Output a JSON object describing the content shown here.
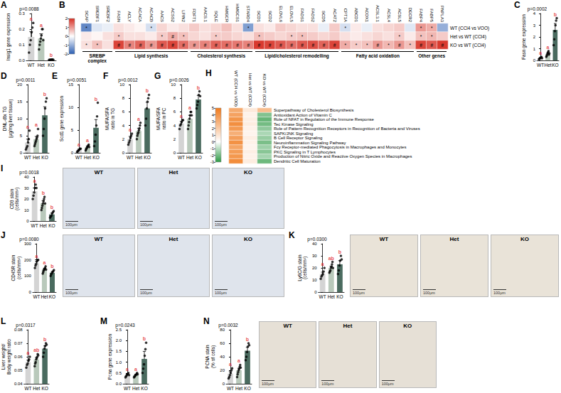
{
  "chart_data": [
    {
      "panel": "A",
      "type": "bar",
      "ylabel": "Insig1 gene expression",
      "annotation": "p=0.0088",
      "categories": [
        "WT",
        "Het",
        "KO"
      ],
      "colors": [
        "#d4d4d4",
        "#b9c9bb",
        "#4a6b5f"
      ],
      "values": [
        0.15,
        0.14,
        0.005
      ],
      "errors": [
        0.035,
        0.03,
        0.002
      ],
      "points": [
        [
          0.05,
          0.1,
          0.13,
          0.18,
          0.21,
          0.24
        ],
        [
          0.07,
          0.1,
          0.12,
          0.14,
          0.16,
          0.2,
          0.2,
          0.13
        ],
        [
          0.003,
          0.004,
          0.005,
          0.006,
          0.006,
          0.004
        ]
      ],
      "letters": [
        "a",
        "a",
        "b"
      ],
      "ylim": [
        0,
        0.3
      ],
      "yticks": [
        {
          "value": 0,
          "label": "0.0"
        },
        0.1,
        0.2,
        0.3
      ]
    },
    {
      "panel": "B",
      "type": "heatmap",
      "groups": [
        {
          "name": "SREBP complex",
          "genes": [
            "SCAP",
            "SREBF1",
            "SREBF2"
          ]
        },
        {
          "name": "Lipid synthesis",
          "genes": [
            "FASN",
            "ACLY",
            "ACACA",
            "ACACB",
            "AACS",
            "ACSS2",
            "LPIN2"
          ]
        },
        {
          "name": "Cholesterol synthesis",
          "genes": [
            "FDFT1",
            "AACS.1",
            "SQLE",
            "HMGCR",
            "HMGCS1",
            "STARD4"
          ]
        },
        {
          "name": "Lipid/cholesterol remodelling",
          "genes": [
            "SCD1",
            "SCD2",
            "ELOVL6",
            "ELOVL5",
            "FADS1",
            "FADS2",
            "SCD5",
            "ACAT2"
          ]
        },
        {
          "name": "Fatty acid oxidation",
          "genes": [
            "CPT1A",
            "ABCD1",
            "ACOX1",
            "ACSL3.1",
            "ACSL4",
            "ACSL5",
            "DECR2"
          ]
        },
        {
          "name": "Other genes",
          "genes": [
            "FABP4",
            "FABP5",
            "PNPLA3"
          ]
        }
      ],
      "rows": [
        "WT (CCl4 vs VOO)",
        "Het vs WT (CCl4)",
        "KO vs WT (CCl4)"
      ],
      "values": [
        [
          -1.5,
          -0.3,
          -0.2,
          0.3,
          0.2,
          0.1,
          -0.4,
          0.4,
          0.2,
          0.3,
          0.5,
          0.3,
          0.4,
          0.6,
          0.3,
          -1.2,
          0.3,
          0.2,
          0.5,
          0.4,
          0.3,
          0.3,
          -0.2,
          0.5,
          -0.4,
          0.2,
          -0.2,
          0.3,
          0.4,
          0.5,
          -0.3,
          1.0,
          0.8,
          -1.0
        ],
        [
          0.2,
          0.1,
          0.3,
          0.5,
          0.3,
          0.3,
          0.2,
          0.5,
          0.8,
          0.6,
          0.4,
          0.3,
          0.5,
          0.5,
          0.4,
          0.3,
          0.6,
          0.5,
          0.4,
          0.5,
          0.6,
          0.5,
          0.4,
          0.5,
          0.3,
          0.2,
          0.3,
          0.4,
          0.3,
          0.5,
          0.2,
          0.6,
          0.7,
          0.5
        ],
        [
          0.3,
          0.6,
          0.3,
          1.8,
          1.2,
          1.5,
          1.0,
          1.6,
          1.8,
          1.4,
          1.0,
          1.2,
          1.5,
          1.4,
          1.3,
          1.2,
          1.9,
          1.8,
          1.6,
          1.4,
          1.6,
          1.7,
          1.5,
          1.8,
          0.8,
          0.5,
          0.6,
          1.0,
          0.7,
          1.0,
          0.6,
          1.8,
          1.6,
          1.9
        ]
      ],
      "marks": [
        [
          "*",
          null,
          null,
          null,
          null,
          null,
          "*",
          null,
          null,
          null,
          null,
          null,
          null,
          null,
          null,
          "*",
          null,
          null,
          null,
          null,
          null,
          null,
          null,
          null,
          "*",
          null,
          null,
          null,
          null,
          null,
          null,
          "*",
          "*",
          null
        ],
        [
          null,
          null,
          null,
          "*",
          null,
          null,
          null,
          "*",
          "#",
          "*",
          null,
          null,
          "*",
          null,
          null,
          null,
          "*",
          null,
          null,
          "*",
          "*",
          null,
          null,
          null,
          null,
          null,
          null,
          null,
          null,
          "*",
          null,
          "*",
          "*",
          null
        ],
        [
          "*",
          "*",
          null,
          "#",
          "#",
          "#",
          "#",
          "#",
          "#",
          "#",
          "#",
          "#",
          "#",
          "#",
          "#",
          "#",
          "#",
          "#",
          "#",
          "#",
          "#",
          "#",
          "#",
          "#",
          "*",
          "*",
          "*",
          "#",
          "*",
          "#",
          "*",
          "#",
          "#",
          "#"
        ]
      ],
      "colorbar": {
        "range": [
          -2,
          2
        ],
        "ticks": [
          -2,
          -1,
          0,
          1,
          2
        ]
      }
    },
    {
      "panel": "C",
      "type": "bar",
      "ylabel": "Fasn gene expression",
      "annotation": "p=0.0002",
      "categories": [
        "WT",
        "Het",
        "KO"
      ],
      "colors": [
        "#d4d4d4",
        "#b9c9bb",
        "#4a6b5f"
      ],
      "values": [
        0.2,
        0.55,
        2.6
      ],
      "errors": [
        0.05,
        0.1,
        0.55
      ],
      "points": [
        [
          0.1,
          0.15,
          0.2,
          0.25,
          0.3,
          0.2
        ],
        [
          0.3,
          0.4,
          0.5,
          0.6,
          0.7,
          0.8,
          0.5,
          0.6
        ],
        [
          1.3,
          1.8,
          2.5,
          3.0,
          3.4,
          3.6
        ]
      ],
      "letters": [
        "a",
        "a",
        "b"
      ],
      "ylim": [
        0,
        4
      ],
      "yticks": [
        0,
        1,
        2,
        3,
        4
      ]
    },
    {
      "panel": "D",
      "type": "bar",
      "ylabel": "DNL-dtx TG\n(μg/mg liver tissue)",
      "annotation": "p=0.0011",
      "categories": [
        "WT",
        "Het",
        "KO"
      ],
      "colors": [
        "#d4d4d4",
        "#b9c9bb",
        "#4a6b5f"
      ],
      "values": [
        3,
        4,
        11
      ],
      "errors": [
        1,
        0.8,
        2.5
      ],
      "points": [
        [
          1,
          1.5,
          2,
          3,
          4,
          6.5
        ],
        [
          2,
          2.5,
          3,
          3.5,
          4,
          4.5,
          5,
          7
        ],
        [
          5,
          7,
          10,
          13,
          15,
          16
        ]
      ],
      "letters": [
        "a",
        "a",
        "b"
      ],
      "ylim": [
        0,
        20
      ],
      "yticks": [
        0,
        5,
        10,
        15,
        20
      ]
    },
    {
      "panel": "E",
      "type": "bar",
      "ylabel": "Scd1 gene expression",
      "annotation": "p=0.0051",
      "categories": [
        "WT",
        "Het",
        "KO"
      ],
      "colors": [
        "#d4d4d4",
        "#b9c9bb",
        "#4a6b5f"
      ],
      "values": [
        0.6,
        1.2,
        5.5
      ],
      "errors": [
        0.2,
        0.3,
        1.8
      ],
      "points": [
        [
          0.2,
          0.4,
          0.5,
          0.7,
          0.9,
          0.9
        ],
        [
          0.5,
          0.8,
          1,
          1.2,
          1.4,
          1.6,
          1.8,
          1.3
        ],
        [
          1.5,
          2.5,
          4,
          6,
          8,
          11
        ]
      ],
      "letters": [
        "a",
        "a",
        "b"
      ],
      "ylim": [
        0,
        15
      ],
      "yticks": [
        0,
        5,
        10,
        15
      ]
    },
    {
      "panel": "F",
      "type": "bar",
      "ylabel": "MUFA/SFA\nratio in TG",
      "annotation": "p=0.0012",
      "categories": [
        "WT",
        "Het",
        "KO"
      ],
      "colors": [
        "#d4d4d4",
        "#b9c9bb",
        "#4a6b5f"
      ],
      "values": [
        2,
        3.2,
        6.5
      ],
      "errors": [
        0.4,
        0.4,
        0.9
      ],
      "points": [
        [
          1.2,
          1.5,
          1.8,
          2.2,
          2.5,
          2.8
        ],
        [
          2,
          2.5,
          2.8,
          3,
          3.3,
          3.6,
          4,
          4.4
        ],
        [
          4,
          5,
          6.5,
          7.5,
          8,
          8.5
        ]
      ],
      "letters": [
        "a",
        "a",
        "b"
      ],
      "ylim": [
        0,
        10
      ],
      "yticks": [
        0,
        2,
        4,
        6,
        8,
        10
      ]
    },
    {
      "panel": "G",
      "type": "bar",
      "ylabel": "MUFA/SFA\nratio in PC",
      "annotation": "p=0.0026",
      "categories": [
        "WT",
        "Het",
        "KO"
      ],
      "colors": [
        "#d4d4d4",
        "#b9c9bb",
        "#4a6b5f"
      ],
      "values": [
        4.3,
        5,
        7.8
      ],
      "errors": [
        0.3,
        0.5,
        0.6
      ],
      "points": [
        [
          3.5,
          4,
          4.2,
          4.5,
          4.8,
          4.8
        ],
        [
          3.5,
          4,
          4.5,
          5,
          5.5,
          6,
          6,
          5.5
        ],
        [
          6.5,
          7,
          7.5,
          8.5,
          9,
          8.3
        ]
      ],
      "letters": [
        "a",
        "a",
        "b"
      ],
      "ylim": [
        0,
        10
      ],
      "yticks": [
        0,
        2,
        4,
        6,
        8,
        10
      ]
    },
    {
      "panel": "H",
      "type": "heatmap",
      "columns": [
        "WT (CCl4 vs VOO)",
        "Het vs WT (CCl4)",
        "KO vs WT (CCl4)"
      ],
      "rows": [
        "Superpathway of Cholesterol Biosynthesis",
        "Antioxidant Action of Vitamin C",
        "Role of NFAT in Regulation of the Immune Response",
        "Tec Kinase Signaling",
        "Role of Pattern Recognition Receptors in Recognition of Bacteria and Viruses",
        "SAPK/JNK Signaling",
        "B Cell Receptor Signaling",
        "Neuroinflammation Signaling Pathway",
        "Fcγ Receptor-mediated Phagocytosis in Macrophages and Monocytes",
        "PKC Signaling in T Lymphocytes",
        "Production of Nitric Oxide and Reactive Oxygen Species in Macrophages",
        "Dendritic Cell Maturation"
      ],
      "values": [
        [
          3.2,
          0.8,
          2.5
        ],
        [
          3.5,
          0.5,
          -1.8
        ],
        [
          4.0,
          0.6,
          -2.2
        ],
        [
          4.2,
          0.7,
          -2.0
        ],
        [
          3.8,
          0.5,
          -1.6
        ],
        [
          3.0,
          0.4,
          -1.2
        ],
        [
          3.6,
          0.6,
          -1.5
        ],
        [
          4.1,
          0.5,
          -1.9
        ],
        [
          3.4,
          0.4,
          -1.4
        ],
        [
          3.7,
          0.6,
          -1.7
        ],
        [
          3.9,
          0.5,
          -1.3
        ],
        [
          4.3,
          0.7,
          -2.1
        ]
      ],
      "colorbar": {
        "range": [
          -3,
          5
        ],
        "ticks": [
          -3,
          -2,
          -1,
          0,
          1,
          2,
          3,
          4,
          5
        ]
      }
    },
    {
      "panel": "I",
      "type": "bar",
      "ylabel": "CD3 stain\n(cells/mm²)",
      "annotation": "p=0.0018",
      "categories": [
        "WT",
        "Het",
        "KO"
      ],
      "colors": [
        "#d4d4d4",
        "#b9c9bb",
        "#4a6b5f"
      ],
      "values": [
        27,
        16,
        6
      ],
      "errors": [
        3,
        2.5,
        1.2
      ],
      "points": [
        [
          20,
          23,
          26,
          30,
          33,
          30
        ],
        [
          10,
          12,
          14,
          16,
          18,
          20,
          22,
          16
        ],
        [
          3,
          4,
          5,
          7,
          8,
          9
        ]
      ],
      "letters": [
        "a",
        "b",
        "b"
      ],
      "ylim": [
        0,
        40
      ],
      "yticks": [
        0,
        10,
        20,
        30,
        40
      ]
    },
    {
      "panel": "J",
      "type": "bar",
      "ylabel": "CD45R stain\n(cells/mm²)",
      "annotation": "p=0.0080",
      "categories": [
        "WT",
        "Het",
        "KO"
      ],
      "colors": [
        "#d4d4d4",
        "#b9c9bb",
        "#4a6b5f"
      ],
      "values": [
        180,
        140,
        120
      ],
      "errors": [
        12,
        8,
        8
      ],
      "points": [
        [
          150,
          165,
          175,
          190,
          200,
          200
        ],
        [
          115,
          125,
          135,
          140,
          145,
          150,
          160,
          140
        ],
        [
          100,
          110,
          118,
          125,
          130,
          137
        ]
      ],
      "letters": [
        "a",
        "a",
        "b"
      ],
      "ylim": [
        0,
        300
      ],
      "yticks": [
        0,
        100,
        200,
        300
      ]
    },
    {
      "panel": "K",
      "type": "bar",
      "ylabel": "Ly6C/G stain\n(cells/mm²)",
      "annotation": "p=0.0300",
      "categories": [
        "WT",
        "Het",
        "KO"
      ],
      "colors": [
        "#d4d4d4",
        "#b9c9bb",
        "#4a6b5f"
      ],
      "values": [
        15,
        20,
        23
      ],
      "errors": [
        1.5,
        1.5,
        3
      ],
      "points": [
        [
          11,
          13,
          14,
          15,
          17,
          20
        ],
        [
          16,
          17,
          18,
          20,
          21,
          23,
          25,
          20
        ],
        [
          15,
          18,
          22,
          26,
          30,
          27
        ]
      ],
      "letters": [
        "a",
        "ab",
        "b"
      ],
      "ylim": [
        0,
        40
      ],
      "yticks": [
        0,
        10,
        20,
        30,
        40
      ]
    },
    {
      "panel": "L",
      "type": "bar",
      "ylabel": "Liver weight/\nBody weight ratio",
      "annotation": "p=0.0317",
      "categories": [
        "WT",
        "Het",
        "KO"
      ],
      "colors": [
        "#d4d4d4",
        "#b9c9bb",
        "#4a6b5f"
      ],
      "values": [
        0.056,
        0.058,
        0.066
      ],
      "errors": [
        0.0015,
        0.0015,
        0.002
      ],
      "points": [
        [
          0.052,
          0.054,
          0.055,
          0.057,
          0.058,
          0.06
        ],
        [
          0.053,
          0.055,
          0.056,
          0.058,
          0.059,
          0.06,
          0.062,
          0.061
        ],
        [
          0.06,
          0.063,
          0.066,
          0.068,
          0.07,
          0.069
        ]
      ],
      "letters": [
        "a",
        "ab",
        "b"
      ],
      "ylim": [
        0.04,
        0.08
      ],
      "yticks": [
        0.04,
        0.05,
        0.06,
        0.07,
        0.08
      ]
    },
    {
      "panel": "M",
      "type": "bar",
      "ylabel": "Pcna gene expression",
      "annotation": "p=0.0243",
      "categories": [
        "WT",
        "Het",
        "KO"
      ],
      "colors": [
        "#d4d4d4",
        "#b9c9bb",
        "#4a6b5f"
      ],
      "values": [
        0.4,
        0.4,
        1.15
      ],
      "errors": [
        0.05,
        0.04,
        0.35
      ],
      "points": [
        [
          0.3,
          0.35,
          0.4,
          0.45,
          0.5,
          0.4
        ],
        [
          0.3,
          0.33,
          0.36,
          0.4,
          0.42,
          0.45,
          0.5,
          0.44
        ],
        [
          0.5,
          0.7,
          0.9,
          1.3,
          1.6,
          1.9
        ]
      ],
      "letters": [
        "a",
        "a",
        "b"
      ],
      "ylim": [
        0,
        2.5
      ],
      "yticks": [
        {
          "value": 0,
          "label": "0.0"
        },
        0.5,
        {
          "value": 1,
          "label": "1.0"
        },
        1.5,
        {
          "value": 2,
          "label": "2.0"
        },
        2.5
      ]
    },
    {
      "panel": "N",
      "type": "bar",
      "ylabel": "PCNA stain\n(% of cells)",
      "annotation": "p=0.0032",
      "categories": [
        "WT",
        "Het",
        "KO"
      ],
      "colors": [
        "#d4d4d4",
        "#b9c9bb",
        "#4a6b5f"
      ],
      "values": [
        15,
        20,
        49
      ],
      "errors": [
        3,
        3,
        5
      ],
      "points": [
        [
          8,
          10,
          13,
          16,
          20,
          23
        ],
        [
          10,
          14,
          17,
          20,
          22,
          25,
          28,
          24
        ],
        [
          35,
          40,
          47,
          55,
          60,
          57
        ]
      ],
      "letters": [
        "a",
        "a",
        "b"
      ],
      "ylim": [
        0,
        80
      ],
      "yticks": [
        0,
        20,
        40,
        60,
        80
      ]
    }
  ],
  "micrographs": [
    {
      "panel": "I",
      "labels": [
        "WT",
        "Het",
        "KO"
      ],
      "scale_bar": "100μm"
    },
    {
      "panel": "J",
      "labels": [
        "WT",
        "Het",
        "KO"
      ],
      "scale_bar": "100μm"
    },
    {
      "panel": "K",
      "labels": [
        "WT",
        "Het",
        "KO"
      ],
      "scale_bar": "100μm"
    },
    {
      "panel": "N",
      "labels": [
        "WT",
        "Het",
        "KO"
      ],
      "scale_bar": "100μm"
    }
  ]
}
